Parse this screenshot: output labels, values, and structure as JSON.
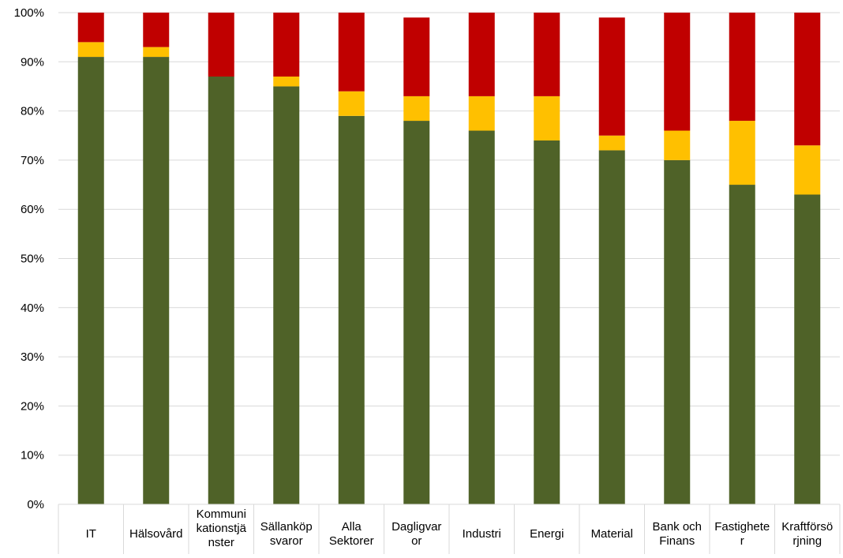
{
  "chart_data": {
    "type": "bar",
    "stacked": true,
    "categories": [
      [
        "IT"
      ],
      [
        "Hälsovård"
      ],
      [
        "Kommuni",
        "kationstjä",
        "nster"
      ],
      [
        "Sällanköp",
        "svaror"
      ],
      [
        "Alla",
        "Sektorer"
      ],
      [
        "Dagligvar",
        "or"
      ],
      [
        "Industri"
      ],
      [
        "Energi"
      ],
      [
        "Material"
      ],
      [
        "Bank och",
        "Finans"
      ],
      [
        "Fastighete",
        "r"
      ],
      [
        "Kraftförsö",
        "rjning"
      ]
    ],
    "series": [
      {
        "color": "#4F6228",
        "values": [
          91,
          91,
          87,
          85,
          79,
          78,
          76,
          74,
          72,
          70,
          65,
          63
        ]
      },
      {
        "color": "#FFC000",
        "values": [
          3,
          2,
          0,
          2,
          5,
          5,
          7,
          9,
          3,
          6,
          13,
          10
        ]
      },
      {
        "color": "#C00000",
        "values": [
          6,
          7,
          13,
          13,
          16,
          16,
          17,
          17,
          24,
          24,
          22,
          27
        ]
      }
    ],
    "y_ticks": [
      "0%",
      "10%",
      "20%",
      "30%",
      "40%",
      "50%",
      "60%",
      "70%",
      "80%",
      "90%",
      "100%"
    ],
    "ylim": [
      0,
      100
    ],
    "grid": true,
    "gridline_color": "#D9D9D9",
    "title": "",
    "xlabel": "",
    "ylabel": ""
  }
}
